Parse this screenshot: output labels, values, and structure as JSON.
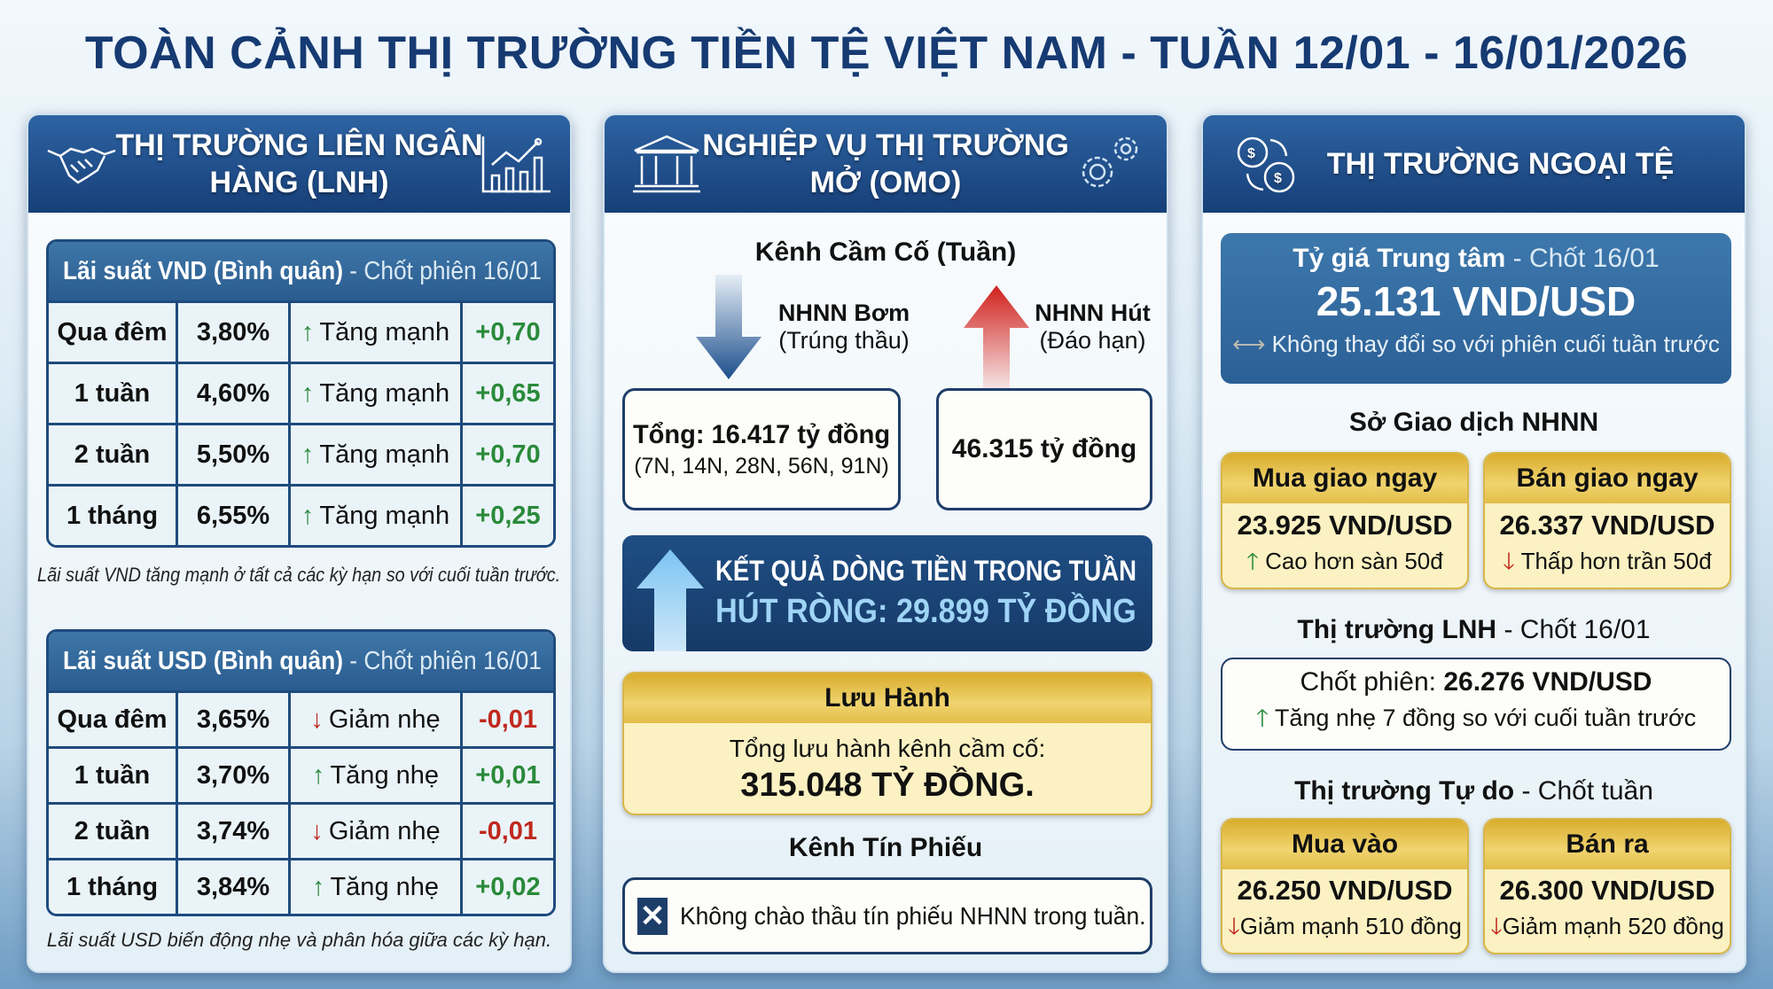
{
  "title": "TOÀN CẢNH THỊ TRƯỜNG TIỀN TỆ VIỆT NAM - TUẦN 12/01 - 16/01/2026",
  "colors": {
    "header_blue": "#173f78",
    "up_green": "#2a8a3a",
    "down_red": "#c0281e",
    "gold": "#e2bd48"
  },
  "interbank": {
    "header_line1": "THỊ TRƯỜNG LIÊN NGÂN",
    "header_line2": "HÀNG (LNH)",
    "icons": [
      "handshake-icon",
      "growth-chart-icon"
    ],
    "vnd": {
      "title_bold": "Lãi suất VND (Bình quân)",
      "title_light": "- Chốt phiên 16/01",
      "rows": [
        {
          "term": "Qua đêm",
          "rate": "3,80%",
          "dir": "up",
          "arrow": "↑",
          "trend": "Tăng mạnh",
          "change": "+0,70"
        },
        {
          "term": "1 tuần",
          "rate": "4,60%",
          "dir": "up",
          "arrow": "↑",
          "trend": "Tăng mạnh",
          "change": "+0,65"
        },
        {
          "term": "2 tuần",
          "rate": "5,50%",
          "dir": "up",
          "arrow": "↑",
          "trend": "Tăng mạnh",
          "change": "+0,70"
        },
        {
          "term": "1 tháng",
          "rate": "6,55%",
          "dir": "up",
          "arrow": "↑",
          "trend": "Tăng mạnh",
          "change": "+0,25"
        }
      ],
      "note": "Lãi suất VND tăng mạnh ở tất cả các kỳ hạn so với cuối tuần trước."
    },
    "usd": {
      "title_bold": "Lãi suất USD (Bình quân)",
      "title_light": "- Chốt phiên 16/01",
      "rows": [
        {
          "term": "Qua đêm",
          "rate": "3,65%",
          "dir": "down",
          "arrow": "↓",
          "trend": "Giảm nhẹ",
          "change": "-0,01"
        },
        {
          "term": "1 tuần",
          "rate": "3,70%",
          "dir": "up",
          "arrow": "↑",
          "trend": "Tăng nhẹ",
          "change": "+0,01"
        },
        {
          "term": "2 tuần",
          "rate": "3,74%",
          "dir": "down",
          "arrow": "↓",
          "trend": "Giảm nhẹ",
          "change": "-0,01"
        },
        {
          "term": "1 tháng",
          "rate": "3,84%",
          "dir": "up",
          "arrow": "↑",
          "trend": "Tăng nhẹ",
          "change": "+0,02"
        }
      ],
      "note": "Lãi suất USD biến động nhẹ và phân hóa giữa các kỳ hạn."
    }
  },
  "omo": {
    "header_line1": "NGHIỆP VỤ THỊ TRƯỜNG",
    "header_line2": "MỞ (OMO)",
    "icons": [
      "bank-building-icon",
      "gears-icon"
    ],
    "repo_title": "Kênh Cầm Cố (Tuần)",
    "inject_label": "NHNN Bơm",
    "inject_sub": "(Trúng thầu)",
    "inject_total": "Tổng: 16.417 tỷ đồng",
    "inject_terms": "(7N, 14N, 28N, 56N, 91N)",
    "absorb_label": "NHNN Hút",
    "absorb_sub": "(Đáo hạn)",
    "absorb_total": "46.315 tỷ đồng",
    "result_title": "KẾT QUẢ DÒNG TIỀN TRONG TUẦN",
    "result_value": "HÚT RÒNG: 29.899 TỶ ĐỒNG",
    "outstanding_title": "Lưu Hành",
    "outstanding_label": "Tổng lưu hành kênh cầm cố:",
    "outstanding_value": "315.048 TỶ ĐỒNG.",
    "bills_title": "Kênh Tín Phiếu",
    "bills_text": "Không chào thầu tín phiếu NHNN trong tuần."
  },
  "fx": {
    "header": "THỊ TRƯỜNG NGOẠI TỆ",
    "icons": [
      "currency-exchange-icon"
    ],
    "central_title_bold": "Tỷ giá Trung tâm",
    "central_title_light": "- Chốt 16/01",
    "central_value": "25.131 VND/USD",
    "central_note": "Không thay đổi so với phiên cuối tuần trước",
    "sbv_title": "Sở Giao dịch NHNN",
    "sbv_buy_title": "Mua giao ngay",
    "sbv_buy_value": "23.925 VND/USD",
    "sbv_buy_note": "Cao hơn sàn 50đ",
    "sbv_sell_title": "Bán giao ngay",
    "sbv_sell_value": "26.337 VND/USD",
    "sbv_sell_note": "Thấp hơn trần 50đ",
    "interbank_title_bold": "Thị trường LNH",
    "interbank_title_light": "- Chốt 16/01",
    "interbank_label": "Chốt phiên:",
    "interbank_value": "26.276 VND/USD",
    "interbank_note": "Tăng nhẹ 7 đồng so với cuối tuần trước",
    "free_title_bold": "Thị trường Tự do",
    "free_title_light": "- Chốt tuần",
    "free_buy_title": "Mua vào",
    "free_buy_value": "26.250 VND/USD",
    "free_buy_note": "Giảm mạnh 510 đồng",
    "free_sell_title": "Bán ra",
    "free_sell_value": "26.300 VND/USD",
    "free_sell_note": "Giảm mạnh 520 đồng"
  }
}
